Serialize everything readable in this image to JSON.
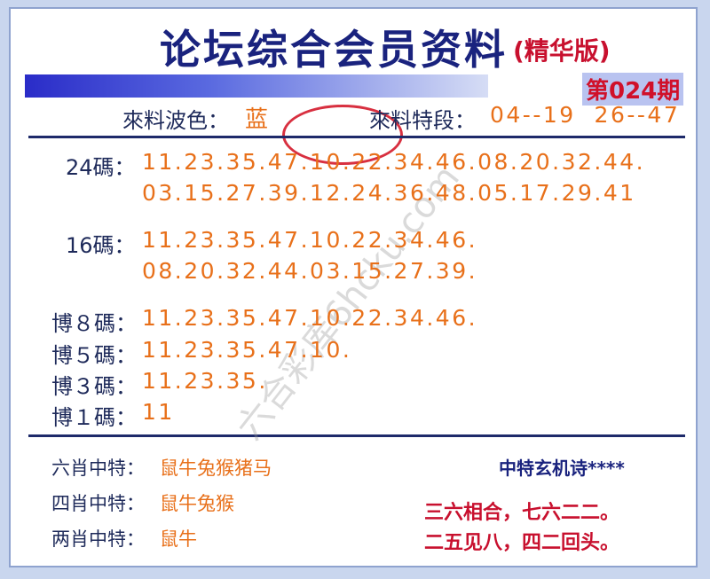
{
  "header": {
    "title": "论坛综合会员资料",
    "subtitle": "(精华版)",
    "issue": "第024期"
  },
  "info": {
    "wave_label": "來料波色：",
    "wave_value": "蓝",
    "segment_label": "來料特段：",
    "segment_value": "04--19  26--47"
  },
  "rows": [
    {
      "label": "24碼：",
      "lines": [
        "11.23.35.47.10.22.34.46.08.20.32.44.",
        "03.15.27.39.12.24.36.48.05.17.29.41"
      ]
    },
    {
      "label": "16碼：",
      "lines": [
        "11.23.35.47.10.22.34.46.",
        "08.20.32.44.03.15.27.39."
      ]
    },
    {
      "label": "博８碼：",
      "lines": [
        "11.23.35.47.10.22.34.46."
      ]
    },
    {
      "label": "博５碼：",
      "lines": [
        "11.23.35.47.10."
      ]
    },
    {
      "label": "博３碼：",
      "lines": [
        "11.23.35."
      ]
    },
    {
      "label": "博１碼：",
      "lines": [
        "11"
      ]
    }
  ],
  "zodiac": [
    {
      "label": "六肖中特：",
      "value": "鼠牛兔猴猪马"
    },
    {
      "label": "四肖中特：",
      "value": "鼠牛兔猴"
    },
    {
      "label": "两肖中特：",
      "value": "鼠牛"
    }
  ],
  "poem": {
    "title": "中特玄机诗****",
    "lines": [
      "三六相合，七六二二。",
      "二五见八，四二回头。"
    ]
  },
  "watermark": "六合彩库6hcku.com"
}
